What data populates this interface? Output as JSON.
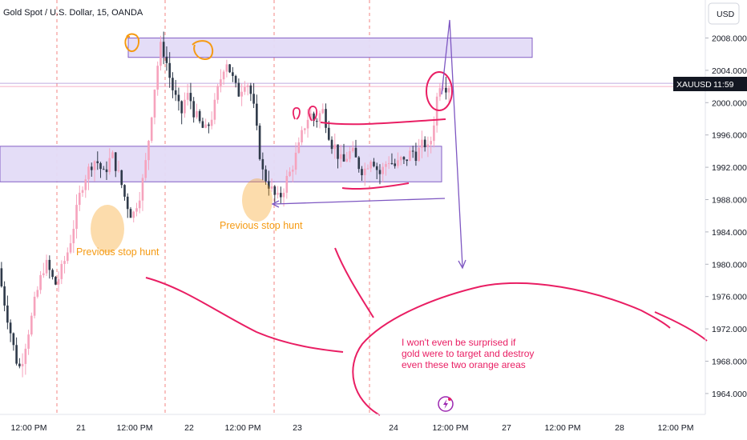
{
  "header": {
    "title": "Gold Spot / U.S. Dollar, 15, OANDA",
    "currency": "USD"
  },
  "price_tag": {
    "symbol": "XAUUSD",
    "countdown": "11:59",
    "value": 2002.2,
    "color": "#131722"
  },
  "annotations": {
    "stop_hunt_left": "Previous stop hunt",
    "stop_hunt_right": "Previous stop hunt",
    "note_lines": [
      "I won't even be surprised if",
      "gold were to target and destroy",
      "even these two orange areas"
    ]
  },
  "colors": {
    "up": "#f6a3bd",
    "down": "#2f3a4a",
    "zone_fill": "#e3dcf7",
    "zone_stroke": "#7e57c2",
    "marker": "#e91e63",
    "orange": "#f59a12",
    "session_line": "#ef5350"
  },
  "chart_data": {
    "type": "candlestick",
    "title": "Gold Spot / U.S. Dollar, 15, OANDA",
    "ylim": [
      1962.0,
      2011.0
    ],
    "y_ticks": [
      "2008.000",
      "2004.000",
      "2000.000",
      "1996.000",
      "1992.000",
      "1988.000",
      "1984.000",
      "1980.000",
      "1976.000",
      "1972.000",
      "1968.000",
      "1964.000"
    ],
    "x_ticks": [
      "12:00 PM",
      "21",
      "12:00 PM",
      "22",
      "12:00 PM",
      "23",
      "24",
      "12:00 PM",
      "27",
      "12:00 PM",
      "28",
      "12:00 PM"
    ],
    "zones": [
      {
        "from": 2005.6,
        "to": 2008.0
      },
      {
        "from": 1990.2,
        "to": 1994.6
      }
    ],
    "close_path": [
      1979.5,
      1976.5,
      1974.0,
      1971.5,
      1969.0,
      1967.0,
      1968.5,
      1971.0,
      1973.0,
      1975.5,
      1977.5,
      1979.5,
      1980.0,
      1978.5,
      1977.5,
      1978.5,
      1980.0,
      1981.5,
      1983.5,
      1986.0,
      1988.5,
      1990.5,
      1991.5,
      1992.5,
      1993.0,
      1992.0,
      1991.0,
      1992.5,
      1993.5,
      1992.0,
      1990.5,
      1988.5,
      1987.0,
      1985.8,
      1987.5,
      1989.0,
      1991.5,
      1995.5,
      2000.0,
      2004.0,
      2007.0,
      2006.0,
      2003.5,
      2001.5,
      2000.0,
      1998.5,
      2000.5,
      2001.0,
      1999.0,
      1998.0,
      1997.0,
      1996.5,
      1997.5,
      1999.0,
      2001.5,
      2003.5,
      2005.5,
      2004.0,
      2002.5,
      2001.0,
      2002.0,
      2003.0,
      2001.5,
      1999.0,
      1995.0,
      1991.5,
      1990.5,
      1989.5,
      1988.5,
      1988.0,
      1989.0,
      1990.5,
      1991.5,
      1993.0,
      1994.5,
      1996.5,
      1998.0,
      1998.5,
      1997.5,
      1998.5,
      1999.0,
      1997.0,
      1995.0,
      1994.5,
      1993.0,
      1992.5,
      1993.5,
      1994.0,
      1993.0,
      1992.0,
      1991.5,
      1992.5,
      1993.5,
      1992.0,
      1991.2,
      1992.0,
      1993.0,
      1992.5,
      1992.0,
      1993.0,
      1992.5,
      1993.5,
      1994.0,
      1993.5,
      1994.5,
      1995.0,
      1994.0,
      1996.5,
      2000.5,
      2003.0,
      2002.0,
      2002.2
    ],
    "high_marker": {
      "price": 2011.5,
      "label": ""
    },
    "projection_target": 1980.0
  }
}
